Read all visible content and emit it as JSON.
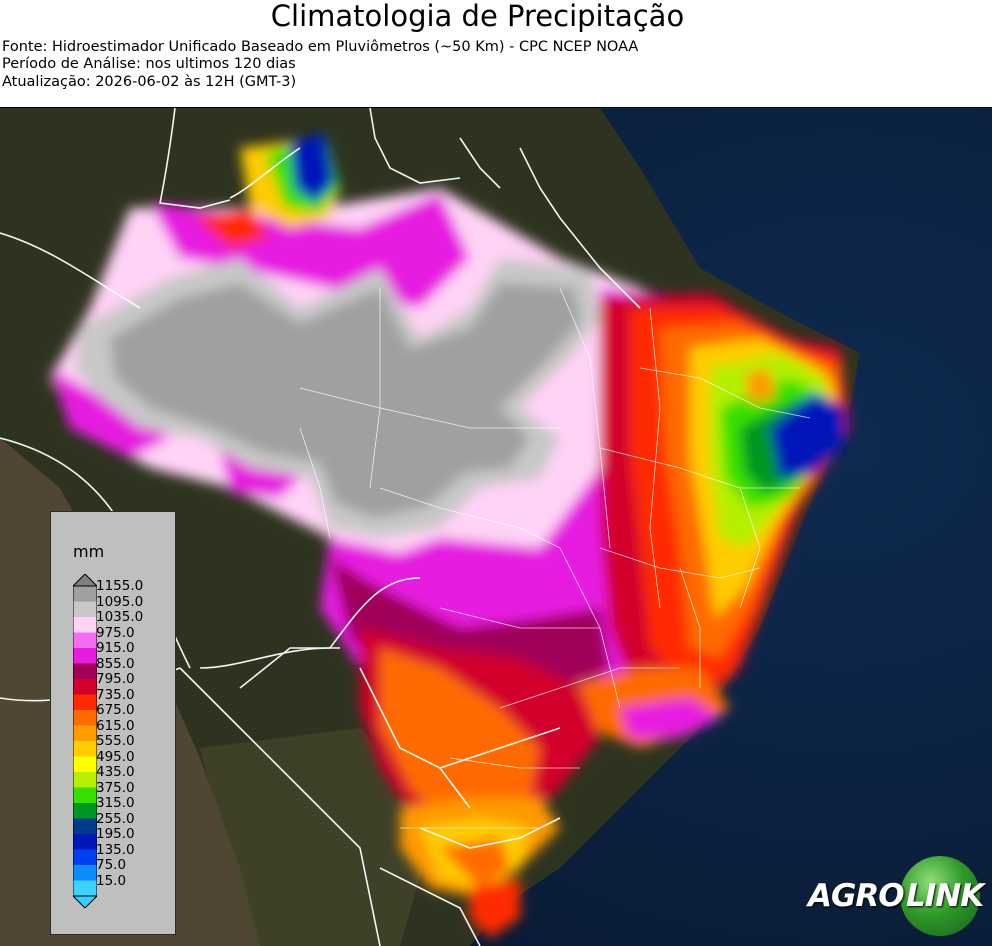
{
  "header": {
    "title": "Climatologia de Precipitação",
    "source": "Fonte: Hidroestimador Unificado Baseado em Pluviômetros (~50 Km) - CPC NCEP NOAA",
    "period": "Período de Análise: nos ultimos 120 dias",
    "updated": "Atualização: 2026-06-02 às 12H (GMT-3)"
  },
  "legend": {
    "unit": "mm",
    "labels": [
      "1155.0",
      "1095.0",
      "1035.0",
      "975.0",
      "915.0",
      "855.0",
      "795.0",
      "735.0",
      "675.0",
      "615.0",
      "555.0",
      "495.0",
      "435.0",
      "375.0",
      "315.0",
      "255.0",
      "195.0",
      "135.0",
      "75.0",
      "15.0"
    ],
    "colors": [
      "#a0a0a0",
      "#c8c8c8",
      "#ffd3f5",
      "#f46cf0",
      "#e61ce0",
      "#a00058",
      "#d2002a",
      "#ff2a00",
      "#ff6a00",
      "#ff9a00",
      "#ffcc00",
      "#ffff00",
      "#b4f000",
      "#37e000",
      "#009624",
      "#003a8c",
      "#0018b8",
      "#0040f0",
      "#0a8cff",
      "#3cd2ff"
    ]
  },
  "logo": {
    "left": "AGRO",
    "right": "LINK"
  },
  "colors": {
    "ocean": "#0a1e3a",
    "land": "#2c3020",
    "border": "#ffffff"
  }
}
